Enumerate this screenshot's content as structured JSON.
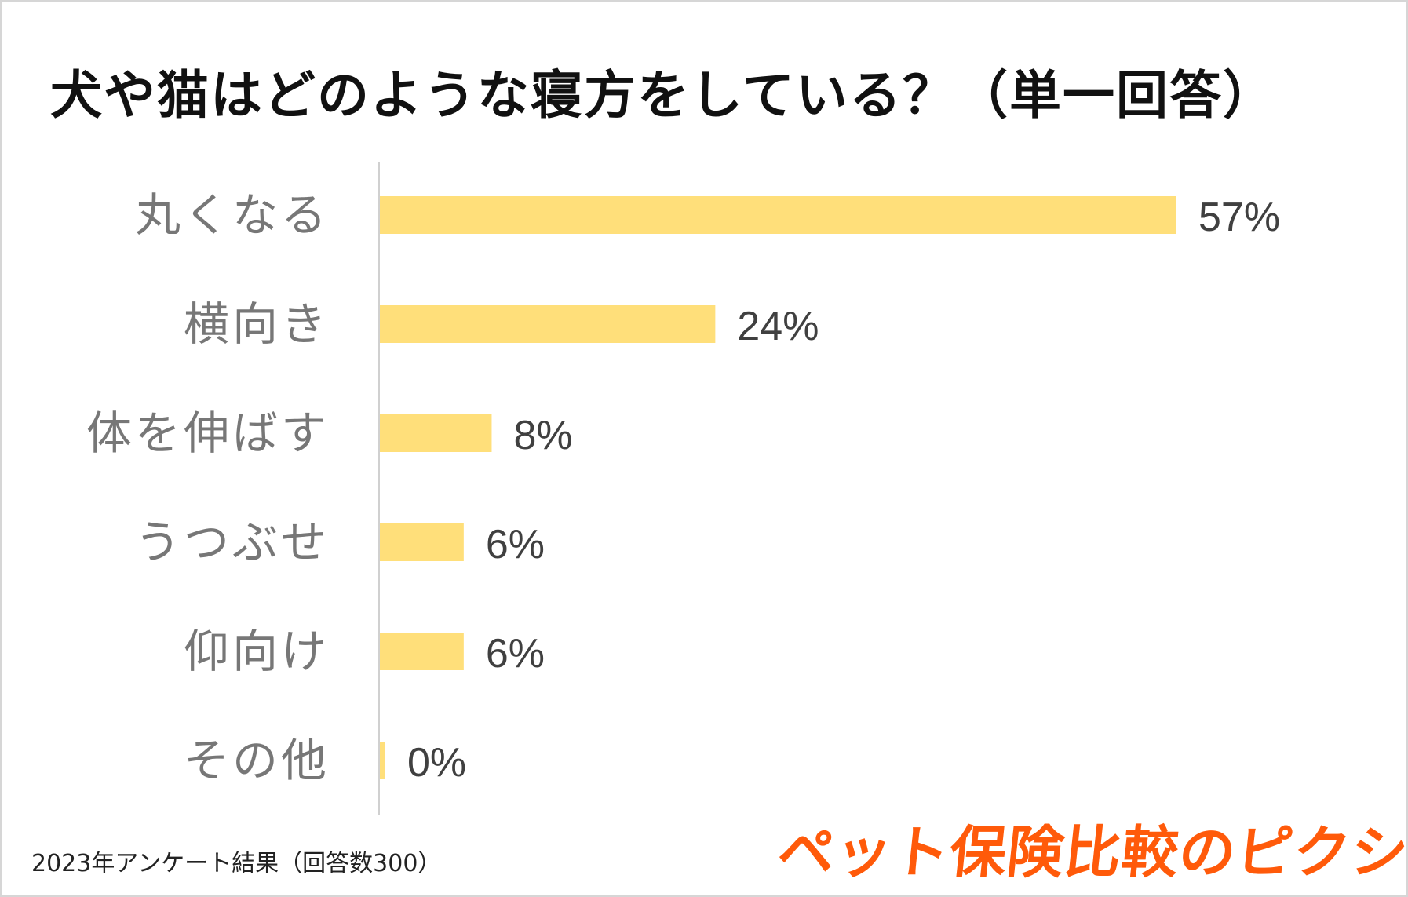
{
  "title": "犬や猫はどのような寝方をしている？（単一回答）",
  "footnote": "2023年アンケート結果（回答数300）",
  "brand": "ペット保険比較のピクシー",
  "colors": {
    "bar": "#ffdf7a",
    "brand": "#ff5a0a",
    "axis": "#d0d0d0",
    "category_text": "#777777",
    "value_text": "#404040"
  },
  "chart_data": {
    "type": "bar",
    "orientation": "horizontal",
    "title": "犬や猫はどのような寝方をしている？（単一回答）",
    "categories": [
      "丸くなる",
      "横向き",
      "体を伸ばす",
      "うつぶせ",
      "仰向け",
      "その他"
    ],
    "values": [
      57,
      24,
      8,
      6,
      6,
      0
    ],
    "value_labels": [
      "57%",
      "24%",
      "8%",
      "6%",
      "6%",
      "0%"
    ],
    "unit": "%",
    "xlim": [
      0,
      60
    ],
    "grid": false,
    "legend": "none"
  }
}
